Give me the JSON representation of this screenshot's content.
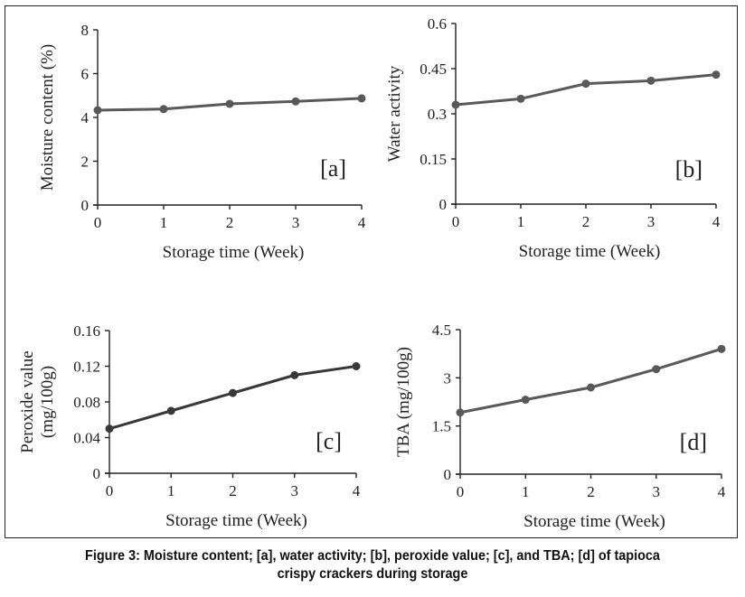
{
  "figure": {
    "caption_line1": "Figure 3: Moisture content; [a], water activity; [b], peroxide value; [c], and TBA; [d] of  tapioca",
    "caption_line2": "crispy crackers during storage"
  },
  "chart_data": [
    {
      "id": "a",
      "type": "line",
      "panel_tag": "[a]",
      "title": "",
      "xlabel": "Storage time (Week)",
      "ylabel": "Moisture content (%)",
      "ylabel_lines": [
        "Moisture content (%)"
      ],
      "x": [
        0,
        1,
        2,
        3,
        4
      ],
      "x_ticks": [
        "0",
        "1",
        "2",
        "3",
        "4"
      ],
      "y_ticks": [
        0,
        2,
        4,
        6,
        8
      ],
      "y_tick_labels": [
        "0",
        "2",
        "4",
        "6",
        "8"
      ],
      "ylim": [
        0,
        8
      ],
      "xlim": [
        0,
        4
      ],
      "grid": false,
      "series": [
        {
          "name": "Moisture content",
          "values": [
            4.33,
            4.38,
            4.62,
            4.73,
            4.87
          ],
          "color": "#595959"
        }
      ]
    },
    {
      "id": "b",
      "type": "line",
      "panel_tag": "[b]",
      "title": "",
      "xlabel": "Storage time (Week)",
      "ylabel": "Water activity",
      "ylabel_lines": [
        "Water activity"
      ],
      "x": [
        0,
        1,
        2,
        3,
        4
      ],
      "x_ticks": [
        "0",
        "1",
        "2",
        "3",
        "4"
      ],
      "y_ticks": [
        0,
        0.15,
        0.3,
        0.45,
        0.6
      ],
      "y_tick_labels": [
        "0",
        "0.15",
        "0.3",
        "0.45",
        "0.6"
      ],
      "ylim": [
        0,
        0.6
      ],
      "xlim": [
        0,
        4
      ],
      "grid": false,
      "series": [
        {
          "name": "Water activity",
          "values": [
            0.33,
            0.35,
            0.4,
            0.41,
            0.43
          ],
          "color": "#595959"
        }
      ]
    },
    {
      "id": "c",
      "type": "line",
      "panel_tag": "[c]",
      "title": "",
      "xlabel": "Storage time (Week)",
      "ylabel": "Peroxide value (mg/100g)",
      "ylabel_lines": [
        "Peroxide value",
        "(mg/100g)"
      ],
      "x": [
        0,
        1,
        2,
        3,
        4
      ],
      "x_ticks": [
        "0",
        "1",
        "2",
        "3",
        "4"
      ],
      "y_ticks": [
        0,
        0.04,
        0.08,
        0.12,
        0.16
      ],
      "y_tick_labels": [
        "0",
        "0.04",
        "0.08",
        "0.12",
        "0.16"
      ],
      "ylim": [
        0,
        0.16
      ],
      "xlim": [
        0,
        4
      ],
      "grid": false,
      "series": [
        {
          "name": "Peroxide value",
          "values": [
            0.05,
            0.07,
            0.09,
            0.11,
            0.12
          ],
          "color": "#383838"
        }
      ]
    },
    {
      "id": "d",
      "type": "line",
      "panel_tag": "[d]",
      "title": "",
      "xlabel": "Storage time (Week)",
      "ylabel": "TBA (mg/100g)",
      "ylabel_lines": [
        "TBA (mg/100g)"
      ],
      "x": [
        0,
        1,
        2,
        3,
        4
      ],
      "x_ticks": [
        "0",
        "1",
        "2",
        "3",
        "4"
      ],
      "y_ticks": [
        0,
        1.5,
        3,
        4.5
      ],
      "y_tick_labels": [
        "0",
        "1.5",
        "3",
        "4.5"
      ],
      "ylim": [
        0,
        4.5
      ],
      "xlim": [
        0,
        4
      ],
      "grid": false,
      "series": [
        {
          "name": "TBA",
          "values": [
            1.92,
            2.32,
            2.7,
            3.27,
            3.9
          ],
          "color": "#595959"
        }
      ]
    }
  ]
}
